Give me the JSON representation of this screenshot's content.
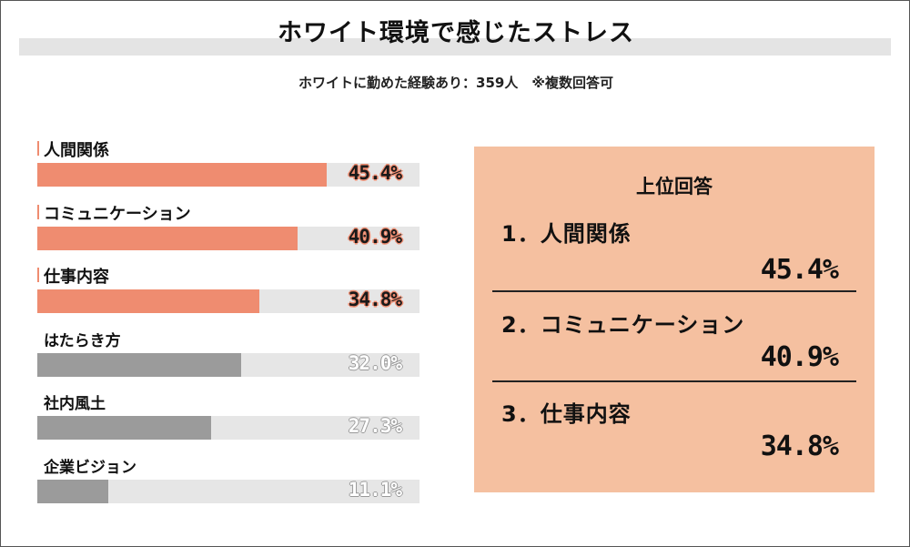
{
  "header": {
    "title": "ホワイト環境で感じたストレス",
    "subtitle": "ホワイトに勤めた経験あり：359人　※複数回答可"
  },
  "colors": {
    "accent": "#ef8c70",
    "other": "#9b9b9b",
    "track": "#e6e6e6",
    "panel": "#f5c0a0"
  },
  "chart_data": {
    "type": "bar",
    "orientation": "horizontal",
    "categories": [
      "人間関係",
      "コミュニケーション",
      "仕事内容",
      "はたらき方",
      "社内風土",
      "企業ビジョン"
    ],
    "values": [
      45.4,
      40.9,
      34.8,
      32.0,
      27.3,
      11.1
    ],
    "value_labels": [
      "45.4%",
      "40.9%",
      "34.8%",
      "32.0%",
      "27.3%",
      "11.1%"
    ],
    "highlighted_top": 3,
    "xlim": [
      0,
      60
    ],
    "grid": false,
    "legend": "none"
  },
  "panel": {
    "title": "上位回答",
    "ranks": [
      {
        "label": "1．人間関係",
        "value": "45.4%"
      },
      {
        "label": "2．コミュニケーション",
        "value": "40.9%"
      },
      {
        "label": "3．仕事内容",
        "value": "34.8%"
      }
    ]
  }
}
